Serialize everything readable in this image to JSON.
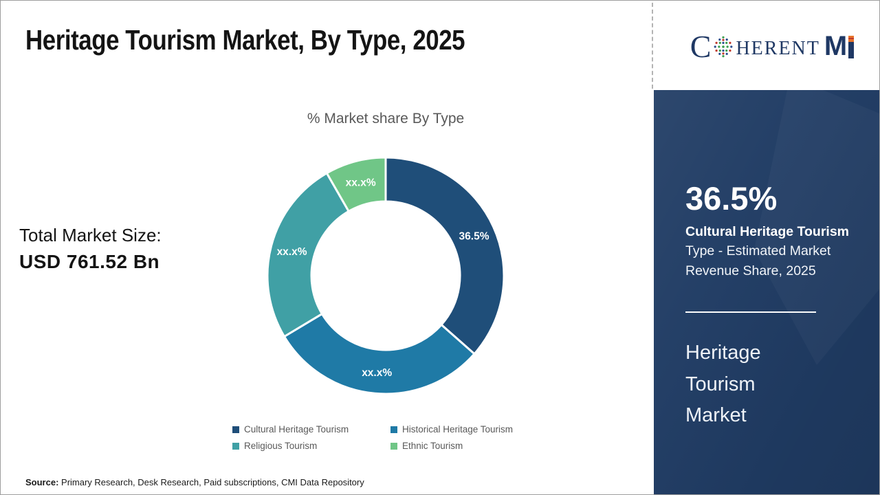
{
  "page": {
    "title": "Heritage Tourism Market, By Type, 2025",
    "source_label": "Source:",
    "source_text": "Primary Research, Desk Research, Paid subscriptions, CMI Data Repository"
  },
  "logo": {
    "c": "C",
    "herent": "HERENT",
    "m": "M",
    "i": "I",
    "navy": "#1F3864",
    "orange": "#E8742C"
  },
  "left_stat": {
    "label": "Total Market Size:",
    "value": "USD 761.52 Bn"
  },
  "chart_data": {
    "type": "pie",
    "donut": true,
    "title": "% Market share By Type",
    "categories": [
      "Cultural Heritage Tourism",
      "Historical Heritage Tourism",
      "Religious Tourism",
      "Ethnic Tourism"
    ],
    "values": [
      36.5,
      29.9,
      25.3,
      8.3
    ],
    "labels": [
      "36.5%",
      "xx.x%",
      "xx.x%",
      "xx.x%"
    ],
    "colors": [
      "#1F4E79",
      "#1F7AA6",
      "#40A0A5",
      "#70C687"
    ],
    "legend_position": "bottom",
    "start_angle_deg": 0
  },
  "side_panel": {
    "bg_color": "#203C64",
    "stat_value": "36.5%",
    "stat_label_bold": "Cultural Heritage Tourism",
    "stat_label_rest": "Type - Estimated Market Revenue Share, 2025",
    "panel_title": "Heritage Tourism Market"
  }
}
